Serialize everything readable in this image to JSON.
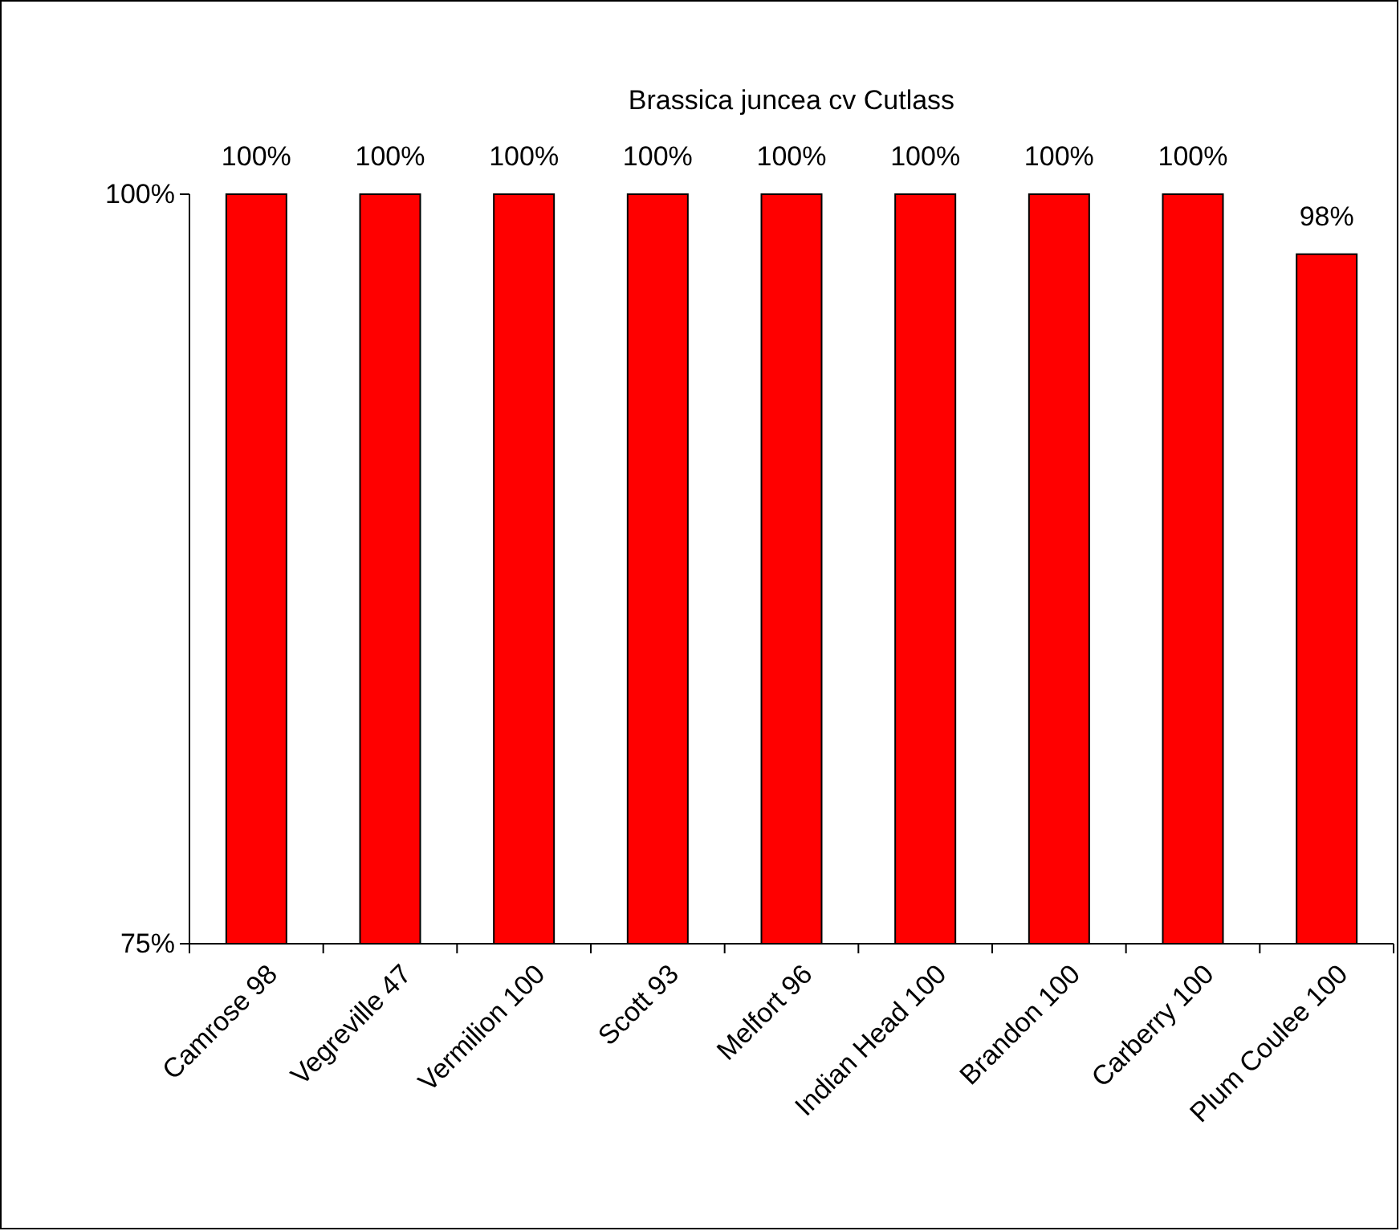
{
  "chart_data": {
    "type": "bar",
    "title": "Brassica juncea cv Cutlass",
    "categories": [
      "Camrose 98",
      "Vegreville 47",
      "Vermilion 100",
      "Scott 93",
      "Melfort 96",
      "Indian Head 100",
      "Brandon 100",
      "Carberry 100",
      "Plum Coulee 100"
    ],
    "values": [
      100,
      100,
      100,
      100,
      100,
      100,
      100,
      100,
      98
    ],
    "value_labels": [
      "100%",
      "100%",
      "100%",
      "100%",
      "100%",
      "100%",
      "100%",
      "100%",
      "98%"
    ],
    "color": "#ff0000",
    "ylim": [
      75,
      100
    ],
    "yticks": [
      {
        "value": 75,
        "label": "75%"
      },
      {
        "value": 100,
        "label": "100%"
      }
    ]
  }
}
